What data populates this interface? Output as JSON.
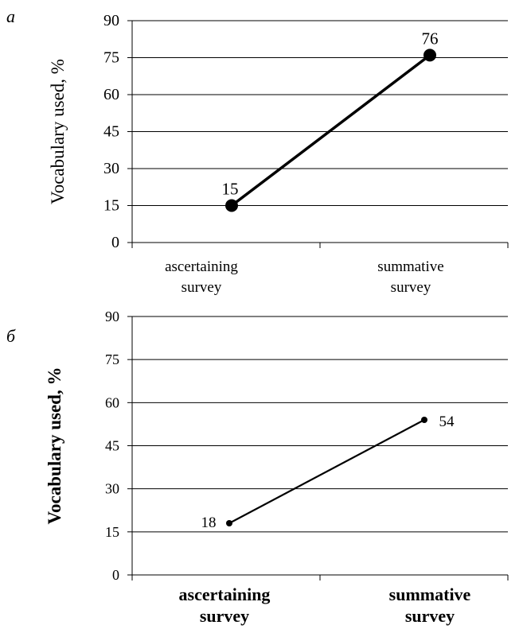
{
  "chart_data": [
    {
      "panel_label": "а",
      "type": "line",
      "categories": [
        "ascertaining survey",
        "summative survey"
      ],
      "category_lines": [
        [
          "ascertaining",
          "survey"
        ],
        [
          "summative",
          "survey"
        ]
      ],
      "series": [
        {
          "values": [
            15,
            76
          ]
        }
      ],
      "data_labels": [
        "15",
        "76"
      ],
      "ylabel": "Vocabulary used, %",
      "ylim": [
        0,
        90
      ],
      "yticks": [
        0,
        15,
        30,
        45,
        60,
        75,
        90
      ],
      "grid": true,
      "legend": "none"
    },
    {
      "panel_label": "б",
      "type": "line",
      "categories": [
        "ascertaining survey",
        "summative survey"
      ],
      "category_lines": [
        [
          "ascertaining",
          "survey"
        ],
        [
          "summative",
          "survey"
        ]
      ],
      "series": [
        {
          "values": [
            18,
            54
          ]
        }
      ],
      "data_labels": [
        "18",
        "54"
      ],
      "ylabel": "Vocabulary used, %",
      "ylim": [
        0,
        90
      ],
      "yticks": [
        0,
        15,
        30,
        45,
        60,
        75,
        90
      ],
      "grid": true,
      "legend": "none"
    }
  ]
}
